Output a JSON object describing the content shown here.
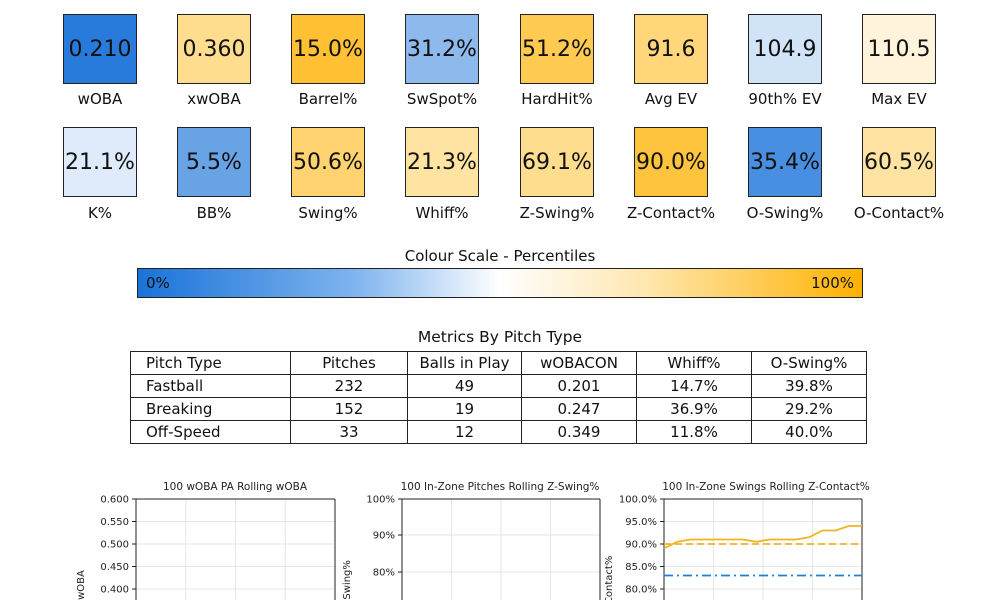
{
  "colors": {
    "low": "#1a73d9",
    "mid": "#ffffff",
    "high": "#ffb100",
    "pct0": "#1a73d9",
    "pct25": "#a9cdf3",
    "pct50": "#fffefb",
    "pct75": "#ffd98a",
    "pct100": "#ffb100"
  },
  "tiles_row1": [
    {
      "value": "0.210",
      "label": "wOBA",
      "percentile": 3
    },
    {
      "value": "0.360",
      "label": "xwOBA",
      "percentile": 72
    },
    {
      "value": "15.0%",
      "label": "Barrel%",
      "percentile": 90
    },
    {
      "value": "31.2%",
      "label": "SwSpot%",
      "percentile": 25
    },
    {
      "value": "51.2%",
      "label": "HardHit%",
      "percentile": 84
    },
    {
      "value": "91.6",
      "label": "Avg EV",
      "percentile": 76
    },
    {
      "value": "104.9",
      "label": "90th% EV",
      "percentile": 40
    },
    {
      "value": "110.5",
      "label": "Max EV",
      "percentile": 57
    }
  ],
  "tiles_row2": [
    {
      "value": "21.1%",
      "label": "K%",
      "percentile": 43
    },
    {
      "value": "5.5%",
      "label": "BB%",
      "percentile": 17
    },
    {
      "value": "50.6%",
      "label": "Swing%",
      "percentile": 78
    },
    {
      "value": "21.3%",
      "label": "Whiff%",
      "percentile": 68
    },
    {
      "value": "69.1%",
      "label": "Z-Swing%",
      "percentile": 72
    },
    {
      "value": "90.0%",
      "label": "Z-Contact%",
      "percentile": 88
    },
    {
      "value": "35.4%",
      "label": "O-Swing%",
      "percentile": 10
    },
    {
      "value": "60.5%",
      "label": "O-Contact%",
      "percentile": 68
    }
  ],
  "scale": {
    "title": "Colour Scale - Percentiles",
    "min_label": "0%",
    "max_label": "100%"
  },
  "table": {
    "title": "Metrics By Pitch Type",
    "headers": [
      "Pitch Type",
      "Pitches",
      "Balls in Play",
      "wOBACON",
      "Whiff%",
      "O-Swing%"
    ],
    "rows": [
      [
        "Fastball",
        "232",
        "49",
        "0.201",
        "14.7%",
        "39.8%"
      ],
      [
        "Breaking",
        "152",
        "19",
        "0.247",
        "36.9%",
        "29.2%"
      ],
      [
        "Off-Speed",
        "33",
        "12",
        "0.349",
        "11.8%",
        "40.0%"
      ]
    ]
  },
  "chart_data": [
    {
      "type": "line",
      "title": "100 wOBA PA Rolling wOBA",
      "ylabel": "wOBA",
      "yticks": [
        "0.600",
        "0.550",
        "0.500",
        "0.450",
        "0.400"
      ],
      "ylim": [
        0.4,
        0.6
      ],
      "series": []
    },
    {
      "type": "line",
      "title": "100 In-Zone Pitches Rolling Z-Swing%",
      "ylabel": "Z-Swing%",
      "yticks": [
        "100%",
        "90%",
        "80%"
      ],
      "ylim": [
        80,
        100
      ],
      "series": []
    },
    {
      "type": "line",
      "title": "100 In-Zone Swings Rolling Z-Contact%",
      "ylabel": "Z-Contact%",
      "yticks": [
        "100.0%",
        "95.0%",
        "90.0%",
        "85.0%",
        "80.0%"
      ],
      "ylim": [
        80,
        100
      ],
      "series": [
        {
          "color": "#f0b323",
          "style": "solid",
          "values": [
            89.0,
            90.5,
            91.0,
            91.0,
            91.0,
            91.0,
            91.0,
            90.5,
            91.0,
            91.0,
            91.0,
            91.5,
            93.0,
            93.0,
            94.0,
            94.0
          ]
        },
        {
          "color": "#f0b323",
          "style": "dashed",
          "values": [
            90.0,
            90.0
          ]
        },
        {
          "color": "#1f7fd6",
          "style": "dashdot",
          "values": [
            83.0,
            83.0
          ]
        }
      ]
    }
  ]
}
